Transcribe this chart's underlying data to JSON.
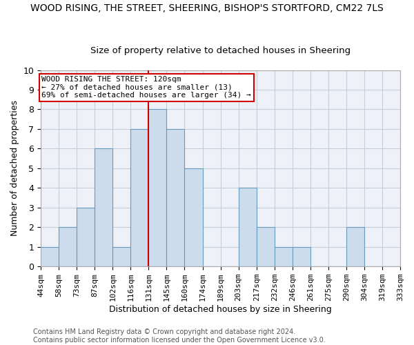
{
  "title": "WOOD RISING, THE STREET, SHEERING, BISHOP'S STORTFORD, CM22 7LS",
  "subtitle": "Size of property relative to detached houses in Sheering",
  "xlabel": "Distribution of detached houses by size in Sheering",
  "ylabel": "Number of detached properties",
  "bar_color": "#ccdcec",
  "bar_edge_color": "#6699bb",
  "bar_values": [
    1,
    2,
    3,
    6,
    1,
    7,
    8,
    7,
    5,
    0,
    0,
    4,
    2,
    1,
    1,
    0,
    0,
    2,
    0,
    0
  ],
  "bin_labels": [
    "44sqm",
    "58sqm",
    "73sqm",
    "87sqm",
    "102sqm",
    "116sqm",
    "131sqm",
    "145sqm",
    "160sqm",
    "174sqm",
    "189sqm",
    "203sqm",
    "217sqm",
    "232sqm",
    "246sqm",
    "261sqm",
    "275sqm",
    "290sqm",
    "304sqm",
    "319sqm",
    "333sqm"
  ],
  "ylim": [
    0,
    10
  ],
  "yticks": [
    0,
    1,
    2,
    3,
    4,
    5,
    6,
    7,
    8,
    9,
    10
  ],
  "marker_bin_index": 6,
  "annotation_box_text": "WOOD RISING THE STREET: 120sqm\n← 27% of detached houses are smaller (13)\n69% of semi-detached houses are larger (34) →",
  "footer": "Contains HM Land Registry data © Crown copyright and database right 2024.\nContains public sector information licensed under the Open Government Licence v3.0.",
  "background_color": "#eef2f8",
  "grid_color": "#c5cdd8",
  "title_fontsize": 10,
  "subtitle_fontsize": 9.5,
  "annotation_fontsize": 8,
  "tick_fontsize": 8,
  "xlabel_fontsize": 9,
  "ylabel_fontsize": 9,
  "footer_fontsize": 7
}
